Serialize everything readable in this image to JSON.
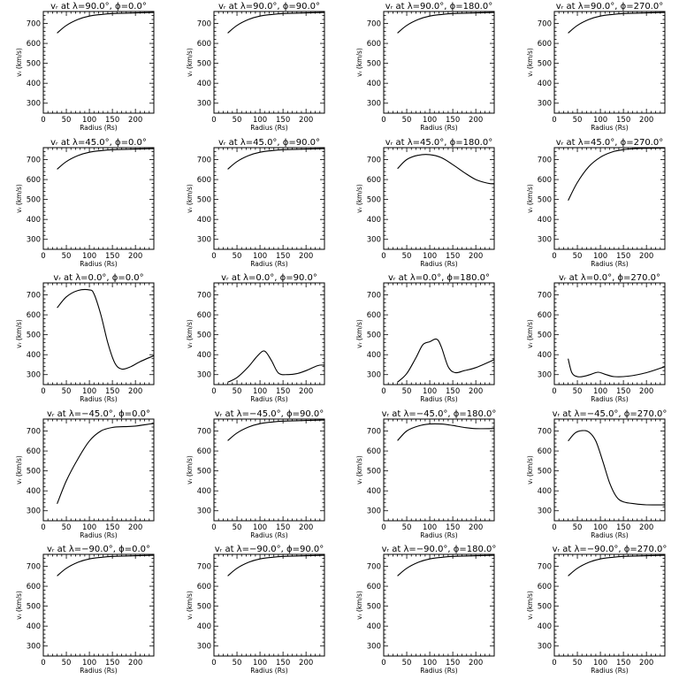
{
  "figure": {
    "rows": 5,
    "cols": 4
  },
  "chart_data": [
    {
      "type": "line",
      "title": "vᵣ at λ=90.0°, ϕ=0.0°",
      "xlabel": "Radius (Rs)",
      "ylabel": "vᵣ (km/s)",
      "xlim": [
        0,
        240
      ],
      "ylim": [
        250,
        760
      ],
      "xticks": [
        0,
        50,
        100,
        150,
        200
      ],
      "yticks": [
        300,
        400,
        500,
        600,
        700
      ],
      "x": [
        30,
        50,
        75,
        100,
        125,
        150,
        200,
        240
      ],
      "y": [
        652,
        690,
        720,
        737,
        745,
        750,
        753,
        755
      ]
    },
    {
      "type": "line",
      "title": "vᵣ at λ=90.0°, ϕ=90.0°",
      "xlabel": "Radius (Rs)",
      "ylabel": "vᵣ (km/s)",
      "xlim": [
        0,
        240
      ],
      "ylim": [
        250,
        760
      ],
      "xticks": [
        0,
        50,
        100,
        150,
        200
      ],
      "yticks": [
        300,
        400,
        500,
        600,
        700
      ],
      "x": [
        30,
        50,
        75,
        100,
        125,
        150,
        200,
        240
      ],
      "y": [
        652,
        690,
        720,
        737,
        745,
        750,
        753,
        755
      ]
    },
    {
      "type": "line",
      "title": "vᵣ at λ=90.0°, ϕ=180.0°",
      "xlabel": "Radius (Rs)",
      "ylabel": "vᵣ (km/s)",
      "xlim": [
        0,
        240
      ],
      "ylim": [
        250,
        760
      ],
      "xticks": [
        0,
        50,
        100,
        150,
        200
      ],
      "yticks": [
        300,
        400,
        500,
        600,
        700
      ],
      "x": [
        30,
        50,
        75,
        100,
        125,
        150,
        200,
        240
      ],
      "y": [
        652,
        690,
        720,
        737,
        745,
        750,
        753,
        755
      ]
    },
    {
      "type": "line",
      "title": "vᵣ at λ=90.0°, ϕ=270.0°",
      "xlabel": "Radius (Rs)",
      "ylabel": "vᵣ (km/s)",
      "xlim": [
        0,
        240
      ],
      "ylim": [
        250,
        760
      ],
      "xticks": [
        0,
        50,
        100,
        150,
        200
      ],
      "yticks": [
        300,
        400,
        500,
        600,
        700
      ],
      "x": [
        30,
        50,
        75,
        100,
        125,
        150,
        200,
        240
      ],
      "y": [
        652,
        690,
        720,
        737,
        745,
        750,
        753,
        755
      ]
    },
    {
      "type": "line",
      "title": "vᵣ at λ=45.0°, ϕ=0.0°",
      "xlabel": "Radius (Rs)",
      "ylabel": "vᵣ (km/s)",
      "xlim": [
        0,
        240
      ],
      "ylim": [
        250,
        760
      ],
      "xticks": [
        0,
        50,
        100,
        150,
        200
      ],
      "yticks": [
        300,
        400,
        500,
        600,
        700
      ],
      "x": [
        30,
        50,
        75,
        100,
        125,
        150,
        200,
        240
      ],
      "y": [
        652,
        690,
        720,
        737,
        745,
        750,
        753,
        755
      ]
    },
    {
      "type": "line",
      "title": "vᵣ at λ=45.0°, ϕ=90.0°",
      "xlabel": "Radius (Rs)",
      "ylabel": "vᵣ (km/s)",
      "xlim": [
        0,
        240
      ],
      "ylim": [
        250,
        760
      ],
      "xticks": [
        0,
        50,
        100,
        150,
        200
      ],
      "yticks": [
        300,
        400,
        500,
        600,
        700
      ],
      "x": [
        30,
        50,
        75,
        100,
        125,
        150,
        200,
        240
      ],
      "y": [
        652,
        690,
        720,
        737,
        745,
        750,
        753,
        755
      ]
    },
    {
      "type": "line",
      "title": "vᵣ at λ=45.0°, ϕ=180.0°",
      "xlabel": "Radius (Rs)",
      "ylabel": "vᵣ (km/s)",
      "xlim": [
        0,
        240
      ],
      "ylim": [
        250,
        760
      ],
      "xticks": [
        0,
        50,
        100,
        150,
        200
      ],
      "yticks": [
        300,
        400,
        500,
        600,
        700
      ],
      "x": [
        30,
        50,
        75,
        100,
        125,
        150,
        175,
        200,
        225,
        240
      ],
      "y": [
        655,
        700,
        722,
        725,
        710,
        675,
        635,
        600,
        582,
        578
      ]
    },
    {
      "type": "line",
      "title": "vᵣ at λ=45.0°, ϕ=270.0°",
      "xlabel": "Radius (Rs)",
      "ylabel": "vᵣ (km/s)",
      "xlim": [
        0,
        240
      ],
      "ylim": [
        250,
        760
      ],
      "xticks": [
        0,
        50,
        100,
        150,
        200
      ],
      "yticks": [
        300,
        400,
        500,
        600,
        700
      ],
      "x": [
        30,
        50,
        75,
        100,
        125,
        150,
        175,
        200,
        240
      ],
      "y": [
        495,
        585,
        665,
        712,
        738,
        750,
        755,
        757,
        758
      ]
    },
    {
      "type": "line",
      "title": "vᵣ at λ=0.0°, ϕ=0.0°",
      "xlabel": "Radius (Rs)",
      "ylabel": "vᵣ (km/s)",
      "xlim": [
        0,
        240
      ],
      "ylim": [
        250,
        760
      ],
      "xticks": [
        0,
        50,
        100,
        150,
        200
      ],
      "yticks": [
        300,
        400,
        500,
        600,
        700
      ],
      "x": [
        30,
        50,
        75,
        100,
        110,
        125,
        140,
        155,
        170,
        190,
        210,
        240
      ],
      "y": [
        635,
        690,
        722,
        725,
        705,
        600,
        460,
        360,
        328,
        340,
        365,
        395
      ]
    },
    {
      "type": "line",
      "title": "vᵣ at λ=0.0°, ϕ=90.0°",
      "xlabel": "Radius (Rs)",
      "ylabel": "vᵣ (km/s)",
      "xlim": [
        0,
        240
      ],
      "ylim": [
        250,
        760
      ],
      "xticks": [
        0,
        50,
        100,
        150,
        200
      ],
      "yticks": [
        300,
        400,
        500,
        600,
        700
      ],
      "x": [
        30,
        50,
        75,
        95,
        110,
        125,
        140,
        160,
        180,
        200,
        225,
        240
      ],
      "y": [
        262,
        285,
        340,
        395,
        418,
        370,
        308,
        300,
        305,
        320,
        345,
        348
      ]
    },
    {
      "type": "line",
      "title": "vᵣ at λ=0.0°, ϕ=180.0°",
      "xlabel": "Radius (Rs)",
      "ylabel": "vᵣ (km/s)",
      "xlim": [
        0,
        240
      ],
      "ylim": [
        250,
        760
      ],
      "xticks": [
        0,
        50,
        100,
        150,
        200
      ],
      "yticks": [
        300,
        400,
        500,
        600,
        700
      ],
      "x": [
        30,
        50,
        70,
        85,
        100,
        115,
        125,
        140,
        155,
        175,
        200,
        240
      ],
      "y": [
        262,
        305,
        385,
        450,
        465,
        478,
        440,
        340,
        310,
        320,
        335,
        375
      ]
    },
    {
      "type": "line",
      "title": "vᵣ at λ=0.0°, ϕ=270.0°",
      "xlabel": "Radius (Rs)",
      "ylabel": "vᵣ (km/s)",
      "xlim": [
        0,
        240
      ],
      "ylim": [
        250,
        760
      ],
      "xticks": [
        0,
        50,
        100,
        150,
        200
      ],
      "yticks": [
        300,
        400,
        500,
        600,
        700
      ],
      "x": [
        30,
        38,
        50,
        65,
        80,
        95,
        110,
        130,
        160,
        200,
        240
      ],
      "y": [
        380,
        310,
        290,
        292,
        302,
        312,
        302,
        290,
        292,
        310,
        340
      ]
    },
    {
      "type": "line",
      "title": "vᵣ at λ=−45.0°, ϕ=0.0°",
      "xlabel": "Radius (Rs)",
      "ylabel": "vᵣ (km/s)",
      "xlim": [
        0,
        240
      ],
      "ylim": [
        250,
        760
      ],
      "xticks": [
        0,
        50,
        100,
        150,
        200
      ],
      "yticks": [
        300,
        400,
        500,
        600,
        700
      ],
      "x": [
        30,
        50,
        75,
        100,
        125,
        150,
        175,
        200,
        240
      ],
      "y": [
        335,
        450,
        560,
        650,
        700,
        718,
        722,
        725,
        738
      ]
    },
    {
      "type": "line",
      "title": "vᵣ at λ=−45.0°, ϕ=90.0°",
      "xlabel": "Radius (Rs)",
      "ylabel": "vᵣ (km/s)",
      "xlim": [
        0,
        240
      ],
      "ylim": [
        250,
        760
      ],
      "xticks": [
        0,
        50,
        100,
        150,
        200
      ],
      "yticks": [
        300,
        400,
        500,
        600,
        700
      ],
      "x": [
        30,
        50,
        75,
        100,
        125,
        150,
        200,
        240
      ],
      "y": [
        652,
        690,
        720,
        737,
        745,
        750,
        753,
        755
      ]
    },
    {
      "type": "line",
      "title": "vᵣ at λ=−45.0°, ϕ=180.0°",
      "xlabel": "Radius (Rs)",
      "ylabel": "vᵣ (km/s)",
      "xlim": [
        0,
        240
      ],
      "ylim": [
        250,
        760
      ],
      "xticks": [
        0,
        50,
        100,
        150,
        200
      ],
      "yticks": [
        300,
        400,
        500,
        600,
        700
      ],
      "x": [
        30,
        50,
        75,
        100,
        125,
        150,
        175,
        200,
        240
      ],
      "y": [
        652,
        700,
        725,
        735,
        735,
        728,
        718,
        712,
        712
      ]
    },
    {
      "type": "line",
      "title": "vᵣ at λ=−45.0°, ϕ=270.0°",
      "xlabel": "Radius (Rs)",
      "ylabel": "vᵣ (km/s)",
      "xlim": [
        0,
        240
      ],
      "ylim": [
        250,
        760
      ],
      "xticks": [
        0,
        50,
        100,
        150,
        200
      ],
      "yticks": [
        300,
        400,
        500,
        600,
        700
      ],
      "x": [
        30,
        45,
        60,
        75,
        90,
        105,
        120,
        135,
        150,
        175,
        200,
        240
      ],
      "y": [
        650,
        690,
        702,
        695,
        650,
        550,
        440,
        370,
        345,
        335,
        330,
        330
      ]
    },
    {
      "type": "line",
      "title": "vᵣ at λ=−90.0°, ϕ=0.0°",
      "xlabel": "Radius (Rs)",
      "ylabel": "vᵣ (km/s)",
      "xlim": [
        0,
        240
      ],
      "ylim": [
        250,
        760
      ],
      "xticks": [
        0,
        50,
        100,
        150,
        200
      ],
      "yticks": [
        300,
        400,
        500,
        600,
        700
      ],
      "x": [
        30,
        50,
        75,
        100,
        125,
        150,
        200,
        240
      ],
      "y": [
        652,
        690,
        720,
        737,
        745,
        750,
        753,
        755
      ]
    },
    {
      "type": "line",
      "title": "vᵣ at λ=−90.0°, ϕ=90.0°",
      "xlabel": "Radius (Rs)",
      "ylabel": "vᵣ (km/s)",
      "xlim": [
        0,
        240
      ],
      "ylim": [
        250,
        760
      ],
      "xticks": [
        0,
        50,
        100,
        150,
        200
      ],
      "yticks": [
        300,
        400,
        500,
        600,
        700
      ],
      "x": [
        30,
        50,
        75,
        100,
        125,
        150,
        200,
        240
      ],
      "y": [
        652,
        690,
        720,
        737,
        745,
        750,
        753,
        755
      ]
    },
    {
      "type": "line",
      "title": "vᵣ at λ=−90.0°, ϕ=180.0°",
      "xlabel": "Radius (Rs)",
      "ylabel": "vᵣ (km/s)",
      "xlim": [
        0,
        240
      ],
      "ylim": [
        250,
        760
      ],
      "xticks": [
        0,
        50,
        100,
        150,
        200
      ],
      "yticks": [
        300,
        400,
        500,
        600,
        700
      ],
      "x": [
        30,
        50,
        75,
        100,
        125,
        150,
        200,
        240
      ],
      "y": [
        652,
        690,
        720,
        737,
        745,
        750,
        753,
        755
      ]
    },
    {
      "type": "line",
      "title": "vᵣ at λ=−90.0°, ϕ=270.0°",
      "xlabel": "Radius (Rs)",
      "ylabel": "vᵣ (km/s)",
      "xlim": [
        0,
        240
      ],
      "ylim": [
        250,
        760
      ],
      "xticks": [
        0,
        50,
        100,
        150,
        200
      ],
      "yticks": [
        300,
        400,
        500,
        600,
        700
      ],
      "x": [
        30,
        50,
        75,
        100,
        125,
        150,
        200,
        240
      ],
      "y": [
        652,
        690,
        720,
        737,
        745,
        750,
        753,
        755
      ]
    }
  ]
}
